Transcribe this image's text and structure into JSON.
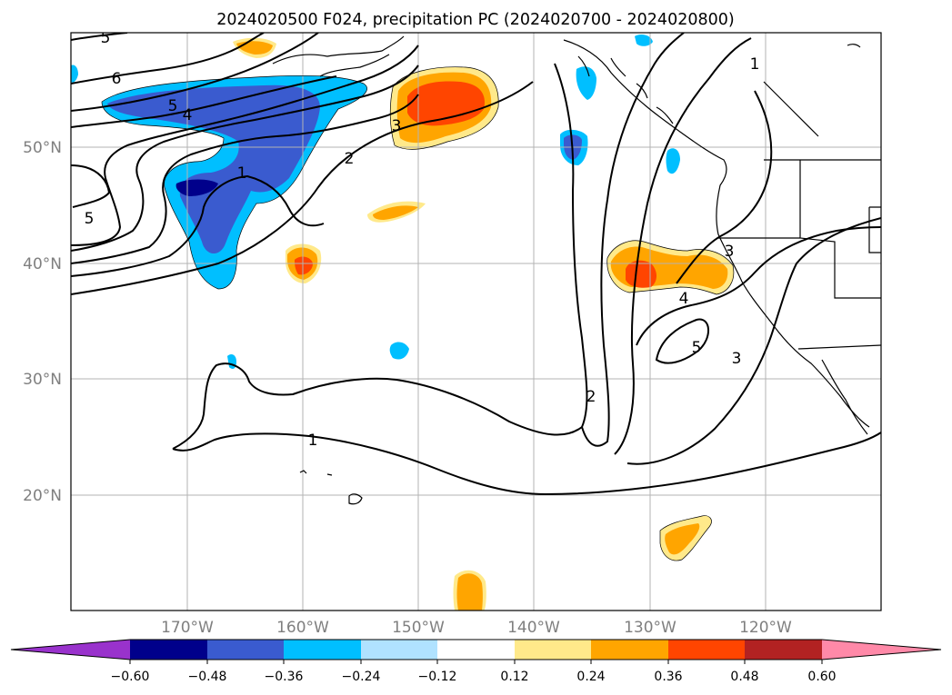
{
  "title": "2024020500 F024, precipitation PC (2024020700 - 2024020800)",
  "lon_ticks": [
    "170°W",
    "160°W",
    "150°W",
    "140°W",
    "130°W",
    "120°W"
  ],
  "lat_ticks": [
    "50°N",
    "40°N",
    "30°N",
    "20°N"
  ],
  "colorbar": {
    "tick_labels": [
      "−0.60",
      "−0.48",
      "−0.36",
      "−0.24",
      "−0.12",
      "0.12",
      "0.24",
      "0.36",
      "0.48",
      "0.60"
    ],
    "bins": [
      {
        "color": "#9932cc"
      },
      {
        "color": "#00008b"
      },
      {
        "color": "#3a5bcf"
      },
      {
        "color": "#00bfff"
      },
      {
        "color": "#b0e2ff"
      },
      {
        "color": "#ffffff"
      },
      {
        "color": "#ffe98a"
      },
      {
        "color": "#ffa500"
      },
      {
        "color": "#ff4500"
      },
      {
        "color": "#b22222"
      },
      {
        "color": "#ff89a8"
      }
    ]
  },
  "contour_labels": [
    "5",
    "6",
    "5",
    "4",
    "1",
    "5",
    "3",
    "2",
    "1",
    "3",
    "4",
    "5",
    "3",
    "2",
    "1"
  ]
}
